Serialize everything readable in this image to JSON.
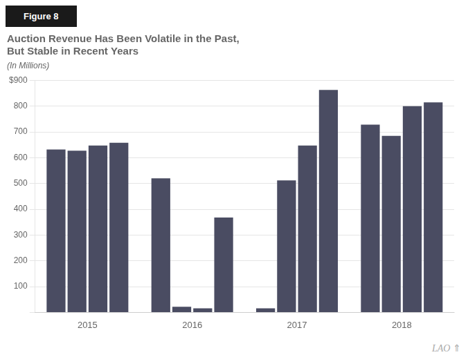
{
  "chart_data": {
    "type": "bar",
    "title": [
      "Auction Revenue Has Been Volatile in the Past,",
      "But Stable in Recent Years"
    ],
    "subtitle": "(In Millions)",
    "annotations": [
      "Figure 8",
      "LAO",
      "⇑"
    ],
    "categories": [
      "2015",
      "2016",
      "2017",
      "2018"
    ],
    "color": "#4a4c62",
    "series": [
      {
        "values": [
          632,
          520,
          16,
          728
        ]
      },
      {
        "values": [
          627,
          22,
          512,
          685
        ]
      },
      {
        "values": [
          647,
          16,
          647,
          800
        ]
      },
      {
        "values": [
          658,
          368,
          863,
          815
        ]
      }
    ],
    "ylim": [
      0,
      900
    ],
    "yticks": [
      {
        "value": 0,
        "label": ""
      },
      100,
      200,
      300,
      400,
      500,
      600,
      700,
      800,
      {
        "value": 900,
        "label": "$900"
      }
    ],
    "grid": true
  }
}
